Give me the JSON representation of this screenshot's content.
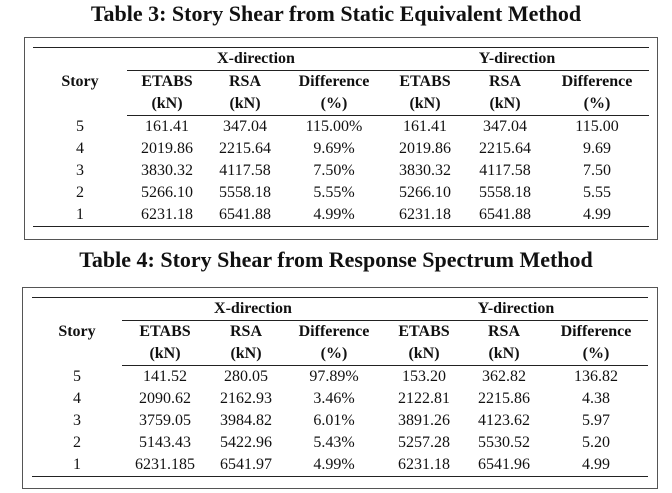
{
  "tables": [
    {
      "caption": "Table 3: Story Shear from Static Equivalent Method",
      "story_header": "Story",
      "groups": [
        "X-direction",
        "Y-direction"
      ],
      "col_names": [
        "ETABS",
        "RSA",
        "Difference",
        "ETABS",
        "RSA",
        "Difference"
      ],
      "col_units": [
        "(kN)",
        "(kN)",
        "(%)",
        "(kN)",
        "(kN)",
        "(%)"
      ],
      "rows": [
        [
          "5",
          "161.41",
          "347.04",
          "115.00%",
          "161.41",
          "347.04",
          "115.00"
        ],
        [
          "4",
          "2019.86",
          "2215.64",
          "9.69%",
          "2019.86",
          "2215.64",
          "9.69"
        ],
        [
          "3",
          "3830.32",
          "4117.58",
          "7.50%",
          "3830.32",
          "4117.58",
          "7.50"
        ],
        [
          "2",
          "5266.10",
          "5558.18",
          "5.55%",
          "5266.10",
          "5558.18",
          "5.55"
        ],
        [
          "1",
          "6231.18",
          "6541.88",
          "4.99%",
          "6231.18",
          "6541.88",
          "4.99"
        ]
      ]
    },
    {
      "caption": "Table 4: Story Shear from Response Spectrum Method",
      "story_header": "Story",
      "groups": [
        "X-direction",
        "Y-direction"
      ],
      "col_names": [
        "ETABS",
        "RSA",
        "Difference",
        "ETABS",
        "RSA",
        "Difference"
      ],
      "col_units": [
        "(kN)",
        "(kN)",
        "(%)",
        "(kN)",
        "(kN)",
        "(%)"
      ],
      "rows": [
        [
          "5",
          "141.52",
          "280.05",
          "97.89%",
          "153.20",
          "362.82",
          "136.82"
        ],
        [
          "4",
          "2090.62",
          "2162.93",
          "3.46%",
          "2122.81",
          "2215.86",
          "4.38"
        ],
        [
          "3",
          "3759.05",
          "3984.82",
          "6.01%",
          "3891.26",
          "4123.62",
          "5.97"
        ],
        [
          "2",
          "5143.43",
          "5422.96",
          "5.43%",
          "5257.28",
          "5530.52",
          "5.20"
        ],
        [
          "1",
          "6231.185",
          "6541.97",
          "4.99%",
          "6231.18",
          "6541.96",
          "4.99"
        ]
      ]
    }
  ]
}
